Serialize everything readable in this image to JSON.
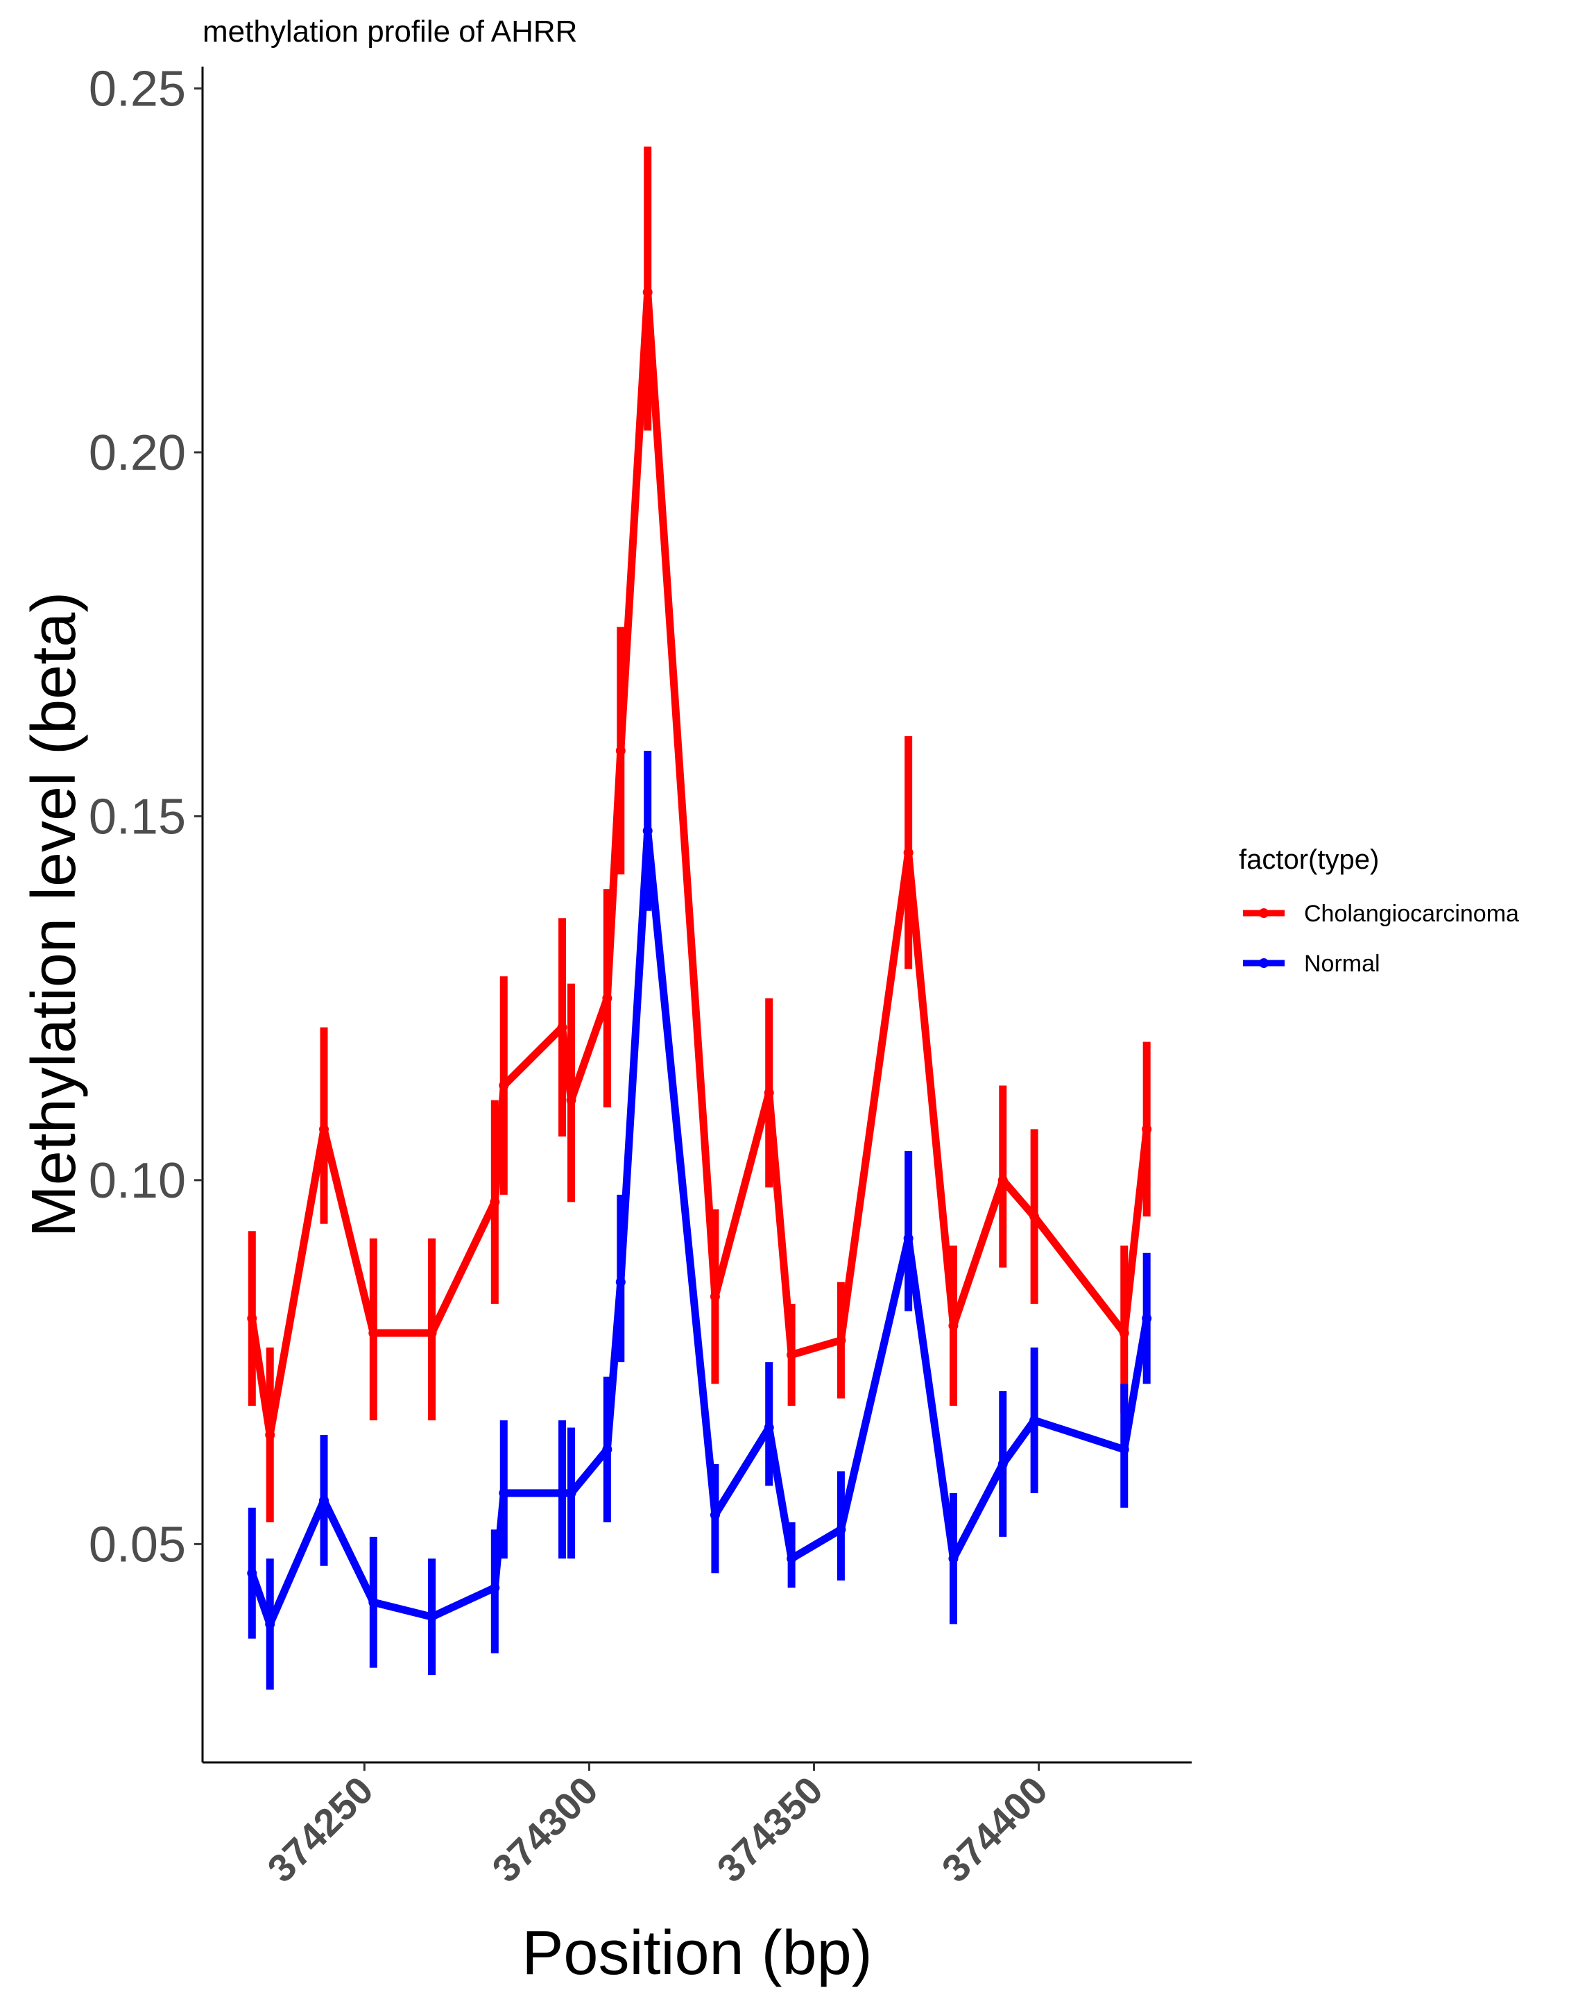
{
  "chart_data": {
    "type": "line",
    "title": "methylation profile of AHRR",
    "xlabel": "Position (bp)",
    "ylabel": "Methylation level (beta)",
    "xlim": [
      374214,
      374434
    ],
    "ylim": [
      0.02,
      0.253
    ],
    "xticks": [
      374250,
      374300,
      374350,
      374400
    ],
    "yticks": [
      0.05,
      0.1,
      0.15,
      0.2,
      0.25
    ],
    "ytick_labels": [
      "0.05",
      "0.10",
      "0.15",
      "0.20",
      "0.25"
    ],
    "grid": false,
    "legend": {
      "title": "factor(type)",
      "position": "right"
    },
    "series": [
      {
        "name": "Cholangiocarcinoma",
        "color": "#ff0000",
        "x": [
          374225,
          374229,
          374241,
          374252,
          374265,
          374279,
          374281,
          374294,
          374296,
          374304,
          374307,
          374313,
          374328,
          374340,
          374345,
          374356,
          374371,
          374381,
          374392,
          374399,
          374419,
          374424
        ],
        "y": [
          0.081,
          0.065,
          0.107,
          0.079,
          0.079,
          0.097,
          0.113,
          0.121,
          0.111,
          0.125,
          0.159,
          0.222,
          0.084,
          0.112,
          0.076,
          0.078,
          0.145,
          0.08,
          0.1,
          0.095,
          0.079,
          0.107
        ],
        "y_lower": [
          0.069,
          0.053,
          0.094,
          0.067,
          0.067,
          0.083,
          0.098,
          0.106,
          0.097,
          0.11,
          0.142,
          0.203,
          0.072,
          0.099,
          0.069,
          0.07,
          0.129,
          0.069,
          0.088,
          0.083,
          0.068,
          0.095
        ],
        "y_upper": [
          0.093,
          0.077,
          0.121,
          0.092,
          0.092,
          0.111,
          0.128,
          0.136,
          0.127,
          0.14,
          0.176,
          0.242,
          0.096,
          0.125,
          0.083,
          0.086,
          0.161,
          0.091,
          0.113,
          0.107,
          0.091,
          0.119
        ]
      },
      {
        "name": "Normal",
        "color": "#0000ff",
        "x": [
          374225,
          374229,
          374241,
          374252,
          374265,
          374279,
          374281,
          374294,
          374296,
          374304,
          374307,
          374313,
          374328,
          374340,
          374345,
          374356,
          374371,
          374381,
          374392,
          374399,
          374419,
          374424
        ],
        "y": [
          0.046,
          0.039,
          0.056,
          0.042,
          0.04,
          0.044,
          0.057,
          0.057,
          0.057,
          0.063,
          0.086,
          0.148,
          0.054,
          0.066,
          0.048,
          0.052,
          0.092,
          0.048,
          0.061,
          0.067,
          0.063,
          0.081
        ],
        "y_lower": [
          0.037,
          0.03,
          0.047,
          0.033,
          0.032,
          0.035,
          0.048,
          0.048,
          0.048,
          0.053,
          0.075,
          0.137,
          0.046,
          0.058,
          0.044,
          0.045,
          0.082,
          0.039,
          0.051,
          0.057,
          0.055,
          0.072
        ],
        "y_upper": [
          0.055,
          0.048,
          0.065,
          0.051,
          0.048,
          0.052,
          0.067,
          0.067,
          0.066,
          0.073,
          0.098,
          0.159,
          0.061,
          0.075,
          0.053,
          0.06,
          0.104,
          0.057,
          0.071,
          0.077,
          0.072,
          0.09
        ]
      }
    ]
  }
}
